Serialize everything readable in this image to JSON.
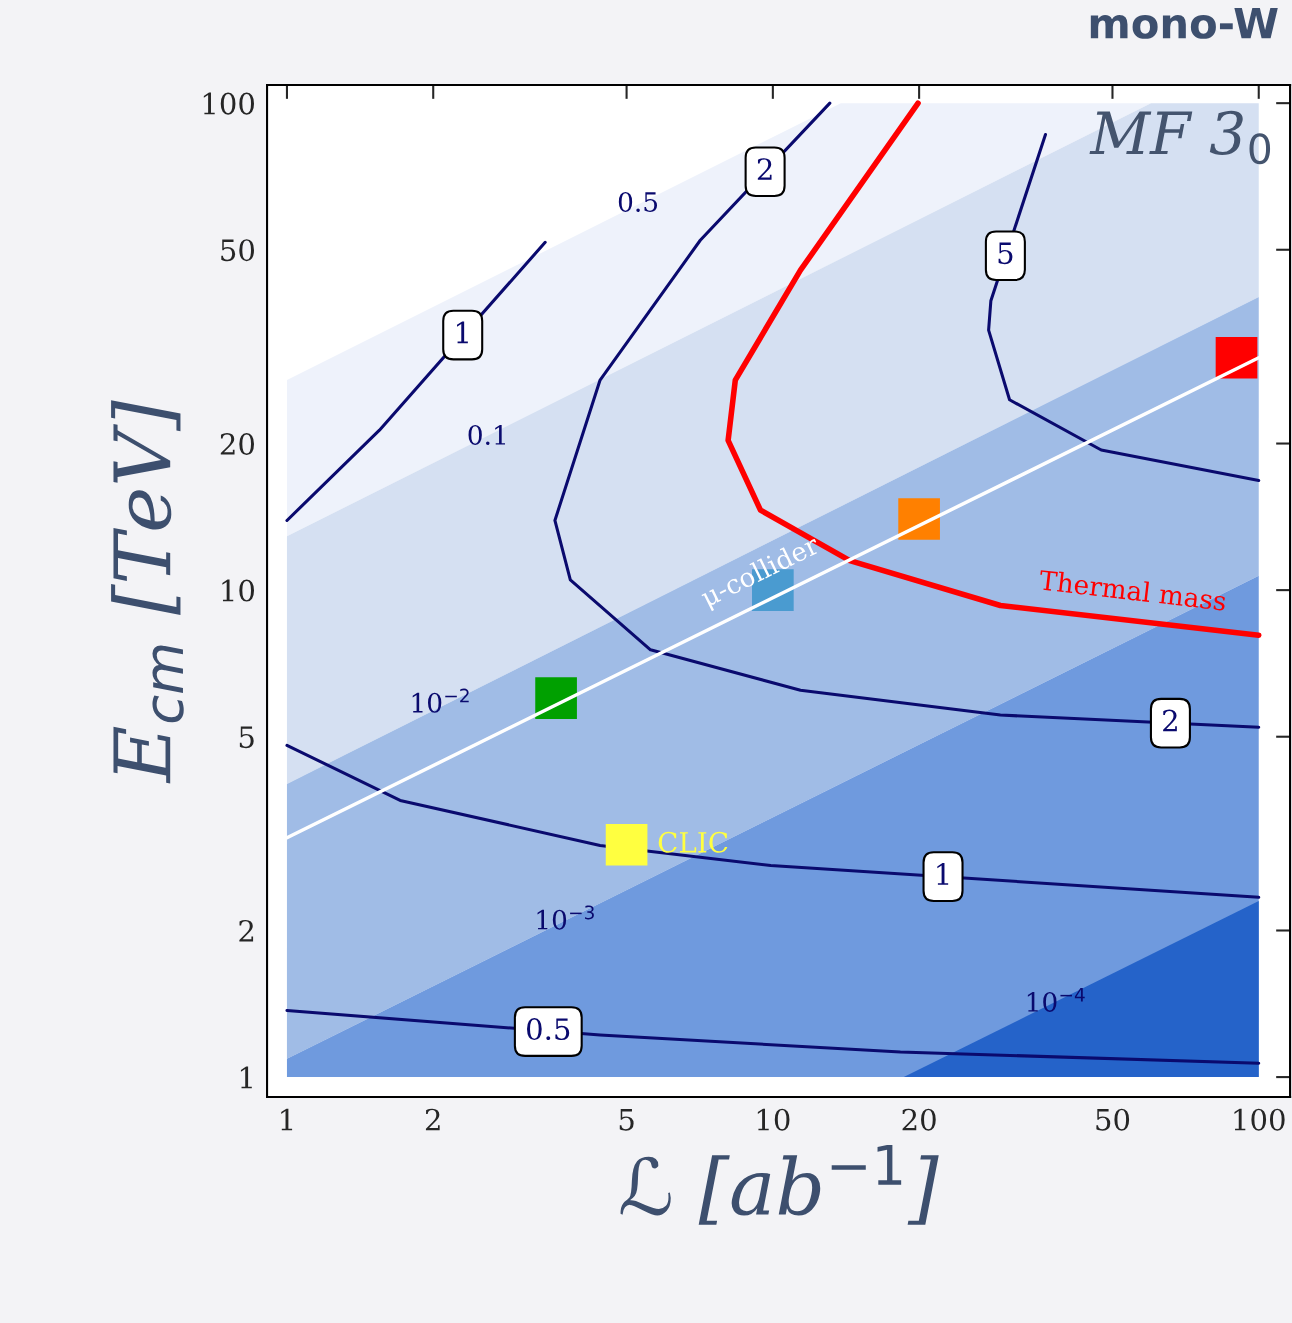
{
  "chart_data": {
    "type": "line",
    "title": "mono-W",
    "xlabel": "ℒ [ab$^{−1}$]",
    "ylabel": "E$_{cm}$ [TeV]",
    "log": "xy",
    "xlim": [
      0.91,
      116
    ],
    "ylim": [
      0.91,
      109
    ],
    "xticks": [
      1,
      2,
      5,
      10,
      20,
      50,
      100
    ],
    "yticks": [
      1,
      2,
      5,
      10,
      20,
      50,
      100
    ],
    "grid": false,
    "series": [
      {
        "type": "area",
        "color": "#eef2fb",
        "x": [
          1,
          13.8,
          100
        ],
        "values": [
          27,
          100,
          100
        ]
      },
      {
        "type": "area",
        "color": "#d5e0f2",
        "x": [
          1,
          60,
          100
        ],
        "values": [
          12.9,
          100,
          100
        ]
      },
      {
        "type": "area",
        "color": "#a0bce6",
        "x": [
          1,
          100
        ],
        "values": [
          4.0,
          40
        ]
      },
      {
        "type": "area",
        "color": "#6f9ade",
        "x": [
          1,
          100
        ],
        "values": [
          1.09,
          10.7
        ]
      },
      {
        "type": "area",
        "color": "#2563c9",
        "x": [
          18.6,
          100
        ],
        "values": [
          1,
          2.3
        ]
      },
      {
        "color": "#0a0a6e",
        "x": [
          1,
          1.55,
          3.4
        ],
        "values": [
          13.9,
          21.3,
          51.8
        ]
      },
      {
        "color": "#0a0a6e",
        "x": [
          13.1,
          7.09,
          4.41,
          3.56,
          3.83,
          5.6,
          11.4,
          29.4,
          100
        ],
        "values": [
          100,
          52.3,
          27,
          13.9,
          10.5,
          7.54,
          6.23,
          5.54,
          5.23
        ]
      },
      {
        "color": "#0a0a6e",
        "x": [
          36.4,
          28.1,
          27.8,
          30.7,
          47.4,
          100
        ],
        "values": [
          86.2,
          39.3,
          34.2,
          24.6,
          19.4,
          16.8
        ]
      },
      {
        "color": "#0a0a6e",
        "x": [
          1,
          1.71,
          4.41,
          9.9,
          100
        ],
        "values": [
          4.8,
          3.7,
          2.99,
          2.72,
          2.34
        ]
      },
      {
        "color": "#0a0a6e",
        "x": [
          1,
          4.41,
          18.3,
          100
        ],
        "values": [
          1.37,
          1.22,
          1.126,
          1.068
        ]
      },
      {
        "name": "Thermal mass",
        "color": "#ff0000",
        "x": [
          19.9,
          11.4,
          8.37,
          8.09,
          9.43,
          14.4,
          29.4,
          100
        ],
        "values": [
          100,
          45.4,
          27,
          20.3,
          14.6,
          11.5,
          9.3,
          8.08
        ]
      },
      {
        "name": "μ-collider",
        "color": "#ffffff",
        "x": [
          1,
          100
        ],
        "values": [
          3.1,
          30
        ]
      },
      {
        "type": "scatter",
        "marker": "square",
        "color": "#00a000",
        "x": [
          3.58
        ],
        "values": [
          6.0
        ]
      },
      {
        "type": "scatter",
        "marker": "square",
        "color": "#4a9bd0",
        "x": [
          10
        ],
        "values": [
          10
        ]
      },
      {
        "type": "scatter",
        "marker": "square",
        "color": "#ff8000",
        "x": [
          20
        ],
        "values": [
          14
        ]
      },
      {
        "type": "scatter",
        "marker": "square",
        "color": "#ff0000",
        "x": [
          90
        ],
        "values": [
          30
        ]
      },
      {
        "type": "scatter",
        "marker": "square",
        "name": "CLIC",
        "color": "#ffff40",
        "x": [
          5
        ],
        "values": [
          3.0
        ]
      }
    ],
    "annotations": [
      "MF 3$_{0}$",
      {
        "text": "1",
        "x": 2.3,
        "y": 33.4
      },
      {
        "text": "2",
        "x": 9.64,
        "y": 72.3
      },
      {
        "text": "2",
        "x": 65.8,
        "y": 5.33
      },
      {
        "text": "5",
        "x": 30.1,
        "y": 48.6
      },
      {
        "text": "1",
        "x": 22.4,
        "y": 2.58
      },
      {
        "text": "0.5",
        "x": 3.45,
        "y": 1.24
      },
      {
        "text": "0.5",
        "x": 5.28,
        "y": 62
      },
      {
        "text": "0.1",
        "x": 2.59,
        "y": 20.6
      },
      {
        "text": "10$^{−2}$",
        "x": 2.07,
        "y": 5.8
      },
      {
        "text": "10$^{−3}$",
        "x": 3.74,
        "y": 2.08
      },
      {
        "text": "10$^{−4}$",
        "x": 38.2,
        "y": 1.41
      }
    ]
  }
}
